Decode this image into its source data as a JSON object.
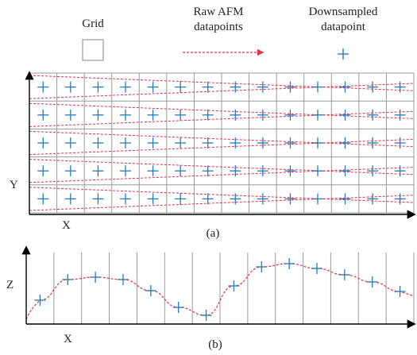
{
  "legend": {
    "grid_label": "Grid",
    "raw_label_line1": "Raw AFM",
    "raw_label_line2": "datapoints",
    "down_label_line1": "Downsampled",
    "down_label_line2": "datapoint"
  },
  "panel_a": {
    "x_label": "X",
    "y_label": "Y",
    "caption": "(a)",
    "columns": 14,
    "rows": 5
  },
  "panel_b": {
    "x_label": "X",
    "z_label": "Z",
    "caption": "(b)",
    "columns": 14
  },
  "colors": {
    "grid": "#9a9a9a",
    "axis": "#000000",
    "raw": "#e0334f",
    "marker": "#2a7ab5"
  }
}
